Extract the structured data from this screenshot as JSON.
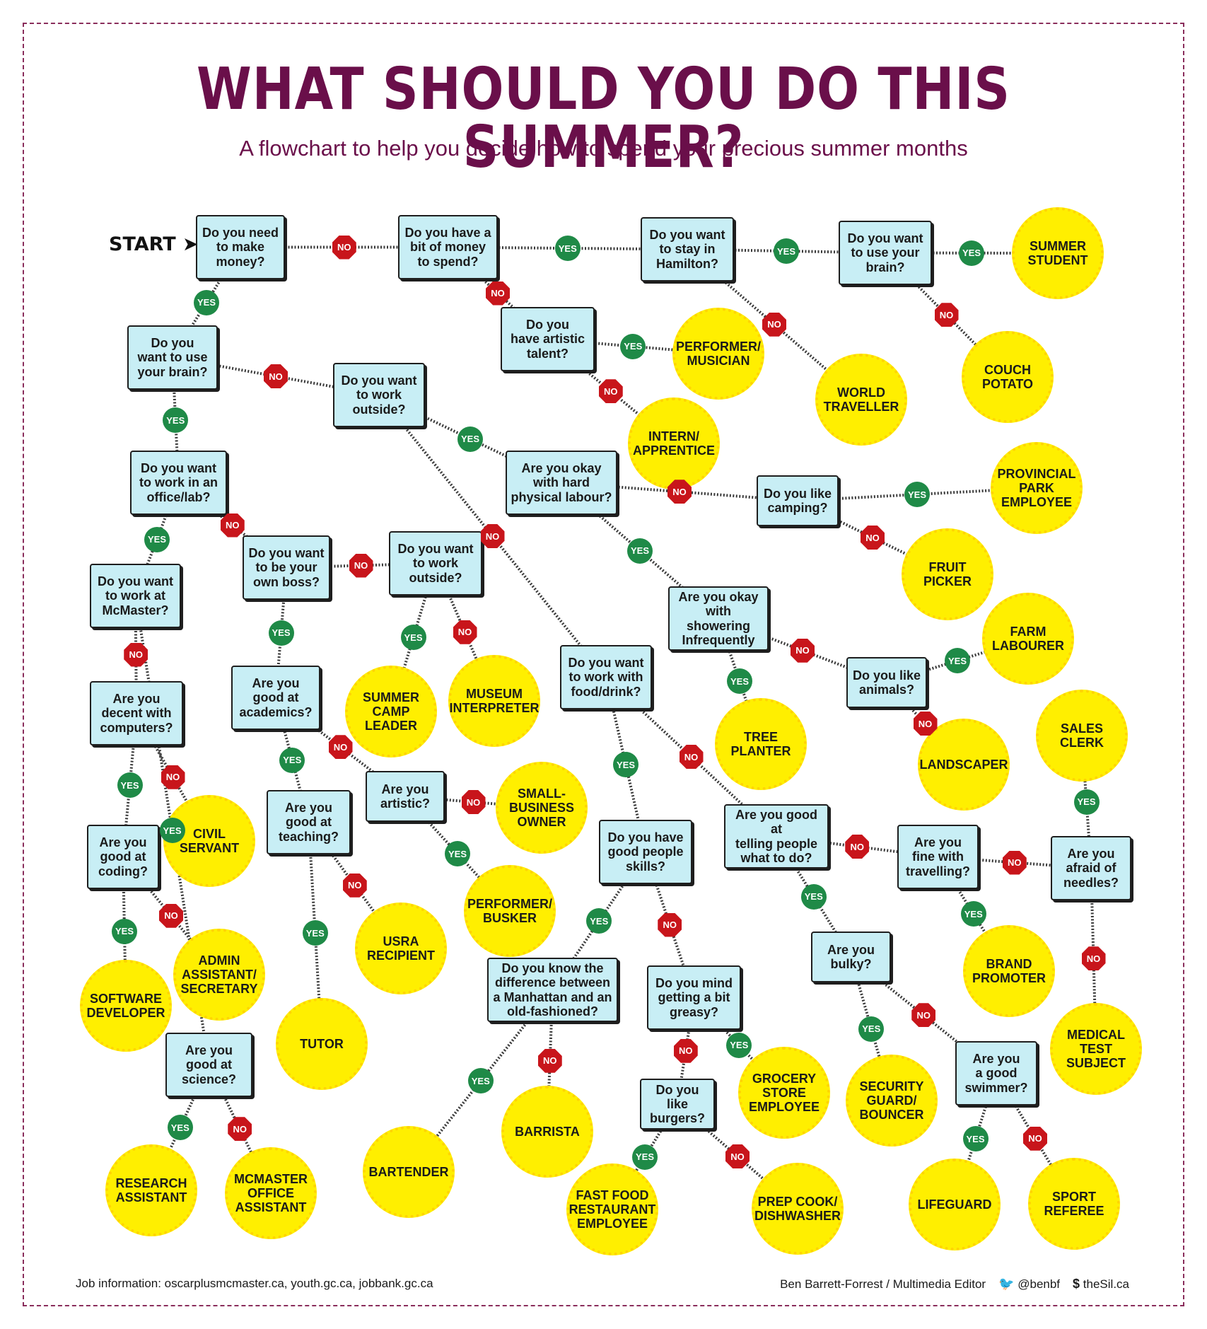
{
  "title": "WHAT SHOULD YOU DO THIS SUMMER?",
  "subtitle": "A flowchart to help you decide how to spend your precious summer months",
  "start_label": "START ➤",
  "labels": {
    "yes": "YES",
    "no": "NO"
  },
  "colors": {
    "title": "#6a0f4a",
    "question_fill": "#c8eef5",
    "result_fill": "#ffef00",
    "yes": "#1f8a47",
    "no": "#c8151b"
  },
  "questions": [
    {
      "id": "q1",
      "text": "Do you need\nto make\nmoney?"
    },
    {
      "id": "q2",
      "text": "Do you have a\nbit of money\nto spend?"
    },
    {
      "id": "q3",
      "text": "Do you want\nto stay in\nHamilton?"
    },
    {
      "id": "q4",
      "text": "Do you want\nto use your\nbrain?"
    },
    {
      "id": "q5",
      "text": "Do you\nhave artistic\ntalent?"
    },
    {
      "id": "q6",
      "text": "Do you\nwant to use\nyour brain?"
    },
    {
      "id": "q7",
      "text": "Do you want\nto work\noutside?"
    },
    {
      "id": "q8",
      "text": "Are you okay\nwith hard\nphysical labour?"
    },
    {
      "id": "q9",
      "text": "Do you like\ncamping?"
    },
    {
      "id": "q10",
      "text": "Do you want\nto work in an\noffice/lab?"
    },
    {
      "id": "q11",
      "text": "Do you want\nto be your\nown boss?"
    },
    {
      "id": "q12",
      "text": "Do you want\nto work\noutside?"
    },
    {
      "id": "q13",
      "text": "Do you want\nto work at\nMcMaster?"
    },
    {
      "id": "q14",
      "text": "Are you okay\nwith showering\nInfrequently"
    },
    {
      "id": "q15",
      "text": "Do you want\nto work with\nfood/drink?"
    },
    {
      "id": "q16",
      "text": "Do you like\nanimals?"
    },
    {
      "id": "q17",
      "text": "Are you\ndecent with\ncomputers?"
    },
    {
      "id": "q18",
      "text": "Are you\ngood at\nacademics?"
    },
    {
      "id": "q19",
      "text": "Are you\nartistic?"
    },
    {
      "id": "q20",
      "text": "Are you\ngood at\nteaching?"
    },
    {
      "id": "q21",
      "text": "Are you\ngood at\ncoding?"
    },
    {
      "id": "q22",
      "text": "Do you have\ngood people\nskills?"
    },
    {
      "id": "q23",
      "text": "Are you good at\ntelling people\nwhat to do?"
    },
    {
      "id": "q24",
      "text": "Are you\nfine with\ntravelling?"
    },
    {
      "id": "q25",
      "text": "Are you\nafraid of\nneedles?"
    },
    {
      "id": "q26",
      "text": "Are you\nbulky?"
    },
    {
      "id": "q27",
      "text": "Do you know the\ndifference between\na Manhattan and an\nold-fashioned?"
    },
    {
      "id": "q28",
      "text": "Do you mind\ngetting a bit\ngreasy?"
    },
    {
      "id": "q29",
      "text": "Are you\ngood at\nscience?"
    },
    {
      "id": "q30",
      "text": "Do you like\nburgers?"
    },
    {
      "id": "q31",
      "text": "Are you\na good\nswimmer?"
    }
  ],
  "results": [
    {
      "id": "r1",
      "text": "SUMMER\nSTUDENT"
    },
    {
      "id": "r2",
      "text": "PERFORMER/\nMUSICIAN"
    },
    {
      "id": "r3",
      "text": "COUCH\nPOTATO"
    },
    {
      "id": "r4",
      "text": "WORLD\nTRAVELLER"
    },
    {
      "id": "r5",
      "text": "INTERN/\nAPPRENTICE"
    },
    {
      "id": "r6",
      "text": "PROVINCIAL\nPARK\nEMPLOYEE"
    },
    {
      "id": "r7",
      "text": "FRUIT\nPICKER"
    },
    {
      "id": "r8",
      "text": "FARM\nLABOURER"
    },
    {
      "id": "r9",
      "text": "SUMMER\nCAMP\nLEADER"
    },
    {
      "id": "r10",
      "text": "MUSEUM\nINTERPRETER"
    },
    {
      "id": "r11",
      "text": "TREE\nPLANTER"
    },
    {
      "id": "r12",
      "text": "LANDSCAPER"
    },
    {
      "id": "r13",
      "text": "SALES\nCLERK"
    },
    {
      "id": "r14",
      "text": "CIVIL\nSERVANT"
    },
    {
      "id": "r15",
      "text": "SMALL-\nBUSINESS\nOWNER"
    },
    {
      "id": "r16",
      "text": "PERFORMER/\nBUSKER"
    },
    {
      "id": "r17",
      "text": "ADMIN\nASSISTANT/\nSECRETARY"
    },
    {
      "id": "r18",
      "text": "SOFTWARE\nDEVELOPER"
    },
    {
      "id": "r19",
      "text": "USRA\nRECIPIENT"
    },
    {
      "id": "r20",
      "text": "TUTOR"
    },
    {
      "id": "r21",
      "text": "BRAND\nPROMOTER"
    },
    {
      "id": "r22",
      "text": "MEDICAL TEST\nSUBJECT"
    },
    {
      "id": "r23",
      "text": "GROCERY\nSTORE\nEMPLOYEE"
    },
    {
      "id": "r24",
      "text": "SECURITY\nGUARD/\nBOUNCER"
    },
    {
      "id": "r25",
      "text": "BARRISTA"
    },
    {
      "id": "r26",
      "text": "BARTENDER"
    },
    {
      "id": "r27",
      "text": "RESEARCH\nASSISTANT"
    },
    {
      "id": "r28",
      "text": "MCMASTER\nOFFICE\nASSISTANT"
    },
    {
      "id": "r29",
      "text": "FAST FOOD\nRESTAURANT\nEMPLOYEE"
    },
    {
      "id": "r30",
      "text": "PREP COOK/\nDISHWASHER"
    },
    {
      "id": "r31",
      "text": "LIFEGUARD"
    },
    {
      "id": "r32",
      "text": "SPORT\nREFEREE"
    }
  ],
  "edges": [
    {
      "from": "q1",
      "to": "q2",
      "answer": "no"
    },
    {
      "from": "q1",
      "to": "q6",
      "answer": "yes"
    },
    {
      "from": "q2",
      "to": "q3",
      "answer": "yes"
    },
    {
      "from": "q2",
      "to": "q5",
      "answer": "no"
    },
    {
      "from": "q3",
      "to": "q4",
      "answer": "yes"
    },
    {
      "from": "q3",
      "to": "r4",
      "answer": "no"
    },
    {
      "from": "q4",
      "to": "r1",
      "answer": "yes"
    },
    {
      "from": "q4",
      "to": "r3",
      "answer": "no"
    },
    {
      "from": "q5",
      "to": "r2",
      "answer": "yes"
    },
    {
      "from": "q5",
      "to": "r5",
      "answer": "no"
    },
    {
      "from": "q6",
      "to": "q7",
      "answer": "no"
    },
    {
      "from": "q6",
      "to": "q10",
      "answer": "yes"
    },
    {
      "from": "q7",
      "to": "q8",
      "answer": "yes"
    },
    {
      "from": "q7",
      "to": "q15",
      "answer": "no"
    },
    {
      "from": "q8",
      "to": "q9",
      "answer": "no"
    },
    {
      "from": "q8",
      "to": "q14",
      "answer": "yes"
    },
    {
      "from": "q9",
      "to": "r6",
      "answer": "yes"
    },
    {
      "from": "q9",
      "to": "r7",
      "answer": "no"
    },
    {
      "from": "q10",
      "to": "q11",
      "answer": "no"
    },
    {
      "from": "q10",
      "to": "q13",
      "answer": "yes"
    },
    {
      "from": "q11",
      "to": "q12",
      "answer": "no"
    },
    {
      "from": "q11",
      "to": "q18",
      "answer": "yes"
    },
    {
      "from": "q12",
      "to": "r9",
      "answer": "yes"
    },
    {
      "from": "q12",
      "to": "r10",
      "answer": "no"
    },
    {
      "from": "q13",
      "to": "q29",
      "answer": "yes"
    },
    {
      "from": "q13",
      "to": "q17",
      "answer": "no"
    },
    {
      "from": "q14",
      "to": "r11",
      "answer": "yes"
    },
    {
      "from": "q14",
      "to": "q16",
      "answer": "no"
    },
    {
      "from": "q15",
      "to": "q22",
      "answer": "yes"
    },
    {
      "from": "q15",
      "to": "q23",
      "answer": "no"
    },
    {
      "from": "q16",
      "to": "r8",
      "answer": "yes"
    },
    {
      "from": "q16",
      "to": "r12",
      "answer": "no"
    },
    {
      "from": "q17",
      "to": "q21",
      "answer": "yes"
    },
    {
      "from": "q17",
      "to": "r14",
      "answer": "no"
    },
    {
      "from": "q18",
      "to": "q20",
      "answer": "yes"
    },
    {
      "from": "q18",
      "to": "q19",
      "answer": "no"
    },
    {
      "from": "q19",
      "to": "r15",
      "answer": "no"
    },
    {
      "from": "q19",
      "to": "r16",
      "answer": "yes"
    },
    {
      "from": "q20",
      "to": "r20",
      "answer": "yes"
    },
    {
      "from": "q20",
      "to": "r19",
      "answer": "no"
    },
    {
      "from": "q21",
      "to": "r18",
      "answer": "yes"
    },
    {
      "from": "q21",
      "to": "r17",
      "answer": "no"
    },
    {
      "from": "q22",
      "to": "q27",
      "answer": "yes"
    },
    {
      "from": "q22",
      "to": "q28",
      "answer": "no"
    },
    {
      "from": "q23",
      "to": "q26",
      "answer": "yes"
    },
    {
      "from": "q23",
      "to": "q24",
      "answer": "no"
    },
    {
      "from": "q24",
      "to": "r21",
      "answer": "yes"
    },
    {
      "from": "q24",
      "to": "q25",
      "answer": "no"
    },
    {
      "from": "q25",
      "to": "r13",
      "answer": "yes"
    },
    {
      "from": "q25",
      "to": "r22",
      "answer": "no"
    },
    {
      "from": "q26",
      "to": "r24",
      "answer": "yes"
    },
    {
      "from": "q26",
      "to": "q31",
      "answer": "no"
    },
    {
      "from": "q27",
      "to": "r26",
      "answer": "yes"
    },
    {
      "from": "q27",
      "to": "r25",
      "answer": "no"
    },
    {
      "from": "q28",
      "to": "r23",
      "answer": "yes"
    },
    {
      "from": "q28",
      "to": "q30",
      "answer": "no"
    },
    {
      "from": "q29",
      "to": "r27",
      "answer": "yes"
    },
    {
      "from": "q29",
      "to": "r28",
      "answer": "no"
    },
    {
      "from": "q30",
      "to": "r29",
      "answer": "yes"
    },
    {
      "from": "q30",
      "to": "r30",
      "answer": "no"
    },
    {
      "from": "q31",
      "to": "r31",
      "answer": "yes"
    },
    {
      "from": "q31",
      "to": "r32",
      "answer": "no"
    }
  ],
  "footer": {
    "source": "Job information: oscarplusmcmaster.ca, youth.gc.ca, jobbank.gc.ca",
    "credit": "Ben Barrett-Forrest / Multimedia Editor",
    "twitter": "@benbf",
    "site": "theSil.ca"
  }
}
